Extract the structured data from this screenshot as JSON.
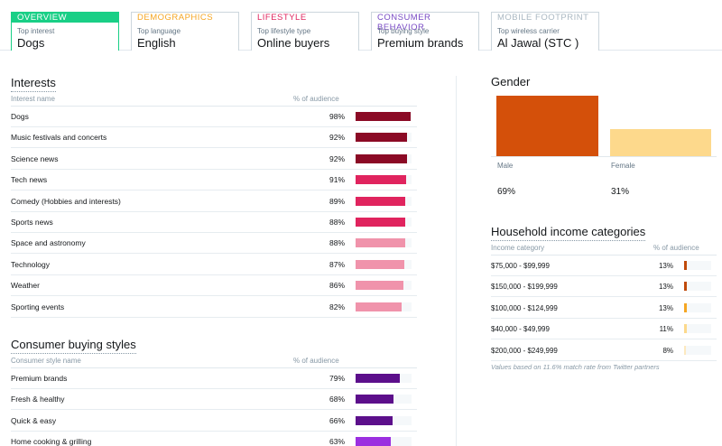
{
  "tabs": [
    {
      "category": "OVERVIEW",
      "sublabel": "Top interest",
      "value": "Dogs",
      "color": "#19cf86",
      "active": true
    },
    {
      "category": "DEMOGRAPHICS",
      "sublabel": "Top language",
      "value": "English",
      "color": "#f5a623",
      "active": false
    },
    {
      "category": "LIFESTYLE",
      "sublabel": "Top lifestyle type",
      "value": "Online buyers",
      "color": "#e0245e",
      "active": false
    },
    {
      "category": "CONSUMER BEHAVIOR",
      "sublabel": "Top buying style",
      "value": "Premium brands",
      "color": "#794bc4",
      "active": false
    },
    {
      "category": "MOBILE FOOTPRINT",
      "sublabel": "Top wireless carrier",
      "value": "Al Jawal (STC )",
      "color": "#aab8c2",
      "active": false
    }
  ],
  "interests": {
    "title": "Interests",
    "col_name": "Interest name",
    "col_pct": "% of audience",
    "rows": [
      {
        "name": "Dogs",
        "pct": "98%",
        "fraction": 0.98,
        "color": "#8b0a25"
      },
      {
        "name": "Music festivals and concerts",
        "pct": "92%",
        "fraction": 0.92,
        "color": "#8b0a25"
      },
      {
        "name": "Science news",
        "pct": "92%",
        "fraction": 0.92,
        "color": "#8b0a25"
      },
      {
        "name": "Tech news",
        "pct": "91%",
        "fraction": 0.91,
        "color": "#e0245e"
      },
      {
        "name": "Comedy (Hobbies and interests)",
        "pct": "89%",
        "fraction": 0.89,
        "color": "#e0245e"
      },
      {
        "name": "Sports news",
        "pct": "88%",
        "fraction": 0.88,
        "color": "#e0245e"
      },
      {
        "name": "Space and astronomy",
        "pct": "88%",
        "fraction": 0.88,
        "color": "#f093ab"
      },
      {
        "name": "Technology",
        "pct": "87%",
        "fraction": 0.87,
        "color": "#f093ab"
      },
      {
        "name": "Weather",
        "pct": "86%",
        "fraction": 0.86,
        "color": "#f093ab"
      },
      {
        "name": "Sporting events",
        "pct": "82%",
        "fraction": 0.82,
        "color": "#f093ab"
      }
    ]
  },
  "buying_styles": {
    "title": "Consumer buying styles",
    "col_name": "Consumer style name",
    "col_pct": "% of audience",
    "rows": [
      {
        "name": "Premium brands",
        "pct": "79%",
        "fraction": 0.79,
        "color": "#5c0f8b"
      },
      {
        "name": "Fresh & healthy",
        "pct": "68%",
        "fraction": 0.68,
        "color": "#5c0f8b"
      },
      {
        "name": "Quick & easy",
        "pct": "66%",
        "fraction": 0.66,
        "color": "#5c0f8b"
      },
      {
        "name": "Home cooking & grilling",
        "pct": "63%",
        "fraction": 0.63,
        "color": "#9b2fe0"
      }
    ]
  },
  "gender": {
    "title": "Gender",
    "male_label": "Male",
    "female_label": "Female",
    "male_pct": "69%",
    "female_pct": "31%",
    "male_fraction": 0.69,
    "female_fraction": 0.31,
    "male_color": "#d4500a",
    "female_color": "#fdd98c"
  },
  "income": {
    "title": "Household income categories",
    "col_name": "Income category",
    "col_pct": "% of audience",
    "rows": [
      {
        "name": "$75,000 - $99,999",
        "pct": "13%",
        "fraction": 0.13,
        "color": "#c04a0a"
      },
      {
        "name": "$150,000 - $199,999",
        "pct": "13%",
        "fraction": 0.13,
        "color": "#c04a0a"
      },
      {
        "name": "$100,000 - $124,999",
        "pct": "13%",
        "fraction": 0.13,
        "color": "#f5a623"
      },
      {
        "name": "$40,000 - $49,999",
        "pct": "11%",
        "fraction": 0.11,
        "color": "#fcd98c"
      },
      {
        "name": "$200,000 - $249,999",
        "pct": "8%",
        "fraction": 0.08,
        "color": "#fde9c0"
      }
    ],
    "note": "Values based on 11.6% match rate from Twitter partners"
  }
}
